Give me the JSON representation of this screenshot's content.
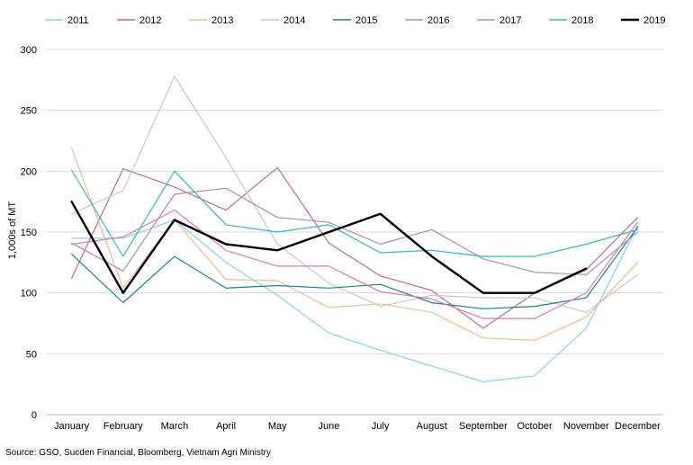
{
  "chart_data": {
    "type": "line",
    "title": "",
    "xlabel": "",
    "ylabel": "1,000s of MT",
    "ylim": [
      0,
      300
    ],
    "yticks": [
      0,
      50,
      100,
      150,
      200,
      250,
      300
    ],
    "grid": true,
    "legend_position": "top",
    "source": "Source: GSO, Sucden Financial, Bloomberg, Vietnam Agri Ministry",
    "categories": [
      "January",
      "February",
      "March",
      "April",
      "May",
      "June",
      "July",
      "August",
      "September",
      "October",
      "November",
      "December"
    ],
    "series": [
      {
        "name": "2011",
        "color": "#7fd3ef",
        "width": 1.2,
        "values": [
          145,
          145,
          160,
          125,
          98,
          67,
          53,
          40,
          27,
          32,
          71,
          155
        ]
      },
      {
        "name": "2012",
        "color": "#c06b8e",
        "width": 1.2,
        "values": [
          112,
          202,
          187,
          168,
          203,
          141,
          114,
          102,
          71,
          100,
          119,
          162
        ]
      },
      {
        "name": "2013",
        "color": "#f7b987",
        "width": 1.2,
        "values": [
          219,
          104,
          160,
          111,
          110,
          88,
          91,
          84,
          63,
          61,
          80,
          125
        ]
      },
      {
        "name": "2014",
        "color": "#c8c8c8",
        "width": 1.2,
        "values": [
          165,
          184,
          278,
          211,
          140,
          108,
          89,
          98,
          96,
          96,
          84,
          115
        ]
      },
      {
        "name": "2015",
        "color": "#13869a",
        "width": 1.2,
        "values": [
          132,
          92,
          130,
          104,
          106,
          104,
          107,
          92,
          87,
          89,
          96,
          154
        ]
      },
      {
        "name": "2016",
        "color": "#a68bc4",
        "width": 1.2,
        "values": [
          141,
          118,
          181,
          186,
          162,
          158,
          140,
          152,
          128,
          117,
          115,
          150
        ]
      },
      {
        "name": "2017",
        "color": "#e07b9c",
        "width": 1.2,
        "values": [
          140,
          146,
          168,
          135,
          122,
          122,
          101,
          95,
          79,
          79,
          100,
          158
        ]
      },
      {
        "name": "2018",
        "color": "#2bbcbc",
        "width": 1.2,
        "values": [
          201,
          130,
          200,
          156,
          150,
          156,
          133,
          135,
          130,
          130,
          140,
          152
        ]
      },
      {
        "name": "2019",
        "color": "#000000",
        "width": 2.4,
        "values": [
          175,
          100,
          160,
          140,
          135,
          150,
          165,
          130,
          100,
          100,
          120,
          null
        ]
      }
    ]
  }
}
